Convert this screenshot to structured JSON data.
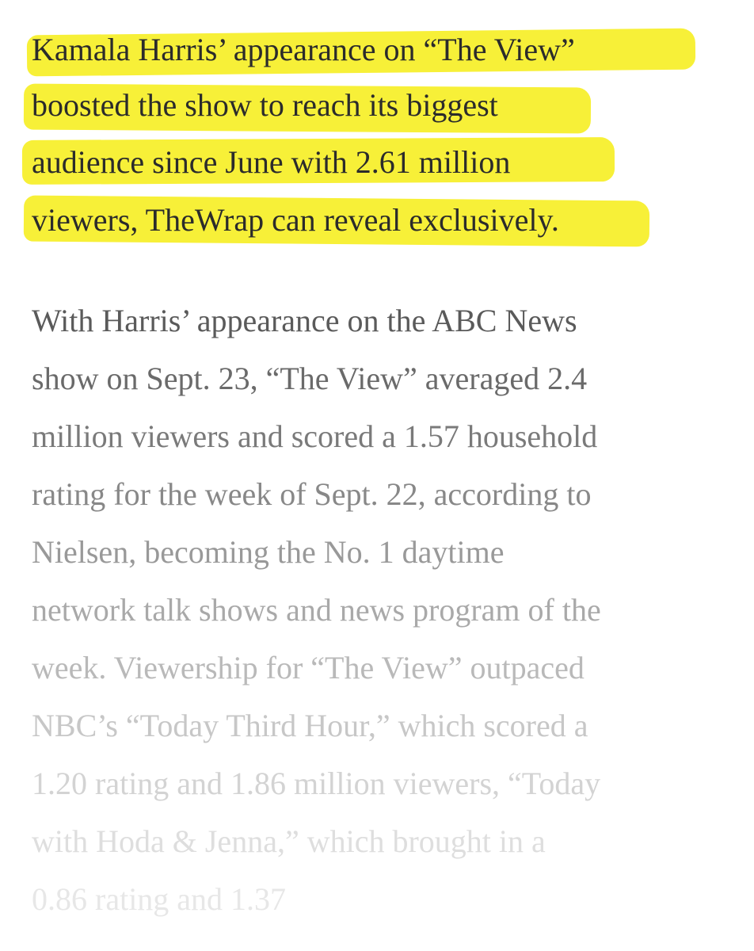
{
  "article": {
    "lead_paragraph": {
      "lines": [
        "Kamala Harris’ appearance on “The View”",
        "boosted the show to reach its biggest",
        "audience since June with 2.61 million",
        "viewers, TheWrap can reveal exclusively."
      ],
      "highlight_color": "#f7f038"
    },
    "body_paragraph": {
      "lines": [
        "With Harris’ appearance on the ABC News",
        "show on Sept. 23, “The View” averaged 2.4",
        "million viewers and scored a 1.57 household",
        "rating for the week of Sept. 22, according to",
        "Nielsen, becoming the No. 1 daytime",
        "network talk shows and news program of the",
        "week. Viewership for “The View” outpaced",
        "NBC’s “Today Third Hour,” which scored a",
        "1.20 rating and 1.86 million viewers, “Today",
        "with Hoda & Jenna,” which brought in a",
        "0.86 rating and 1.37"
      ],
      "fade_colors": [
        "#5a5a5a",
        "#6a6a6a",
        "#7a7a7a",
        "#888888",
        "#999999",
        "#a9a9a9",
        "#b9b9b9",
        "#c7c7c7",
        "#d3d3d3",
        "#dedede",
        "#e7e7e7"
      ]
    }
  }
}
